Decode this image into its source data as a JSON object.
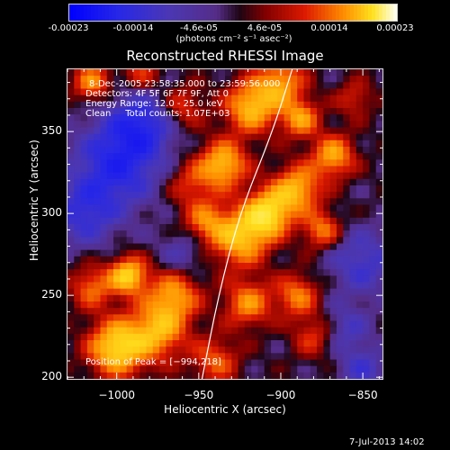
{
  "colorbar": {
    "ticks": [
      "-0.00023",
      "-0.00014",
      "-4.6e-05",
      "4.6e-05",
      "0.00014",
      "0.00023"
    ],
    "units": "(photons cm⁻² s⁻¹ asec⁻²)",
    "range": [
      -0.00023,
      0.00023
    ]
  },
  "chart_data": {
    "type": "heatmap",
    "title": "Reconstructed RHESSI Image",
    "xlabel": "Heliocentric X (arcsec)",
    "ylabel": "Heliocentric Y (arcsec)",
    "xlim": [
      -1030,
      -838
    ],
    "ylim": [
      199,
      388
    ],
    "xticks": [
      -1000,
      -950,
      -900,
      -850
    ],
    "yticks": [
      200,
      250,
      300,
      350
    ],
    "xtick_labels": [
      "−1000",
      "−950",
      "−900",
      "−850"
    ],
    "ytick_labels": [
      "200",
      "250",
      "300",
      "350"
    ],
    "info_lines": [
      "8-Dec-2005 23:58:35.000 to 23:59:56.000",
      "Detectors: 4F 5F 6F 7F 9F, Att 0",
      "Energy Range: 12.0 - 25.0 keV",
      "Clean     Total counts: 1.07E+03"
    ],
    "peak_label": "Position of Peak = [−994,218]",
    "peak_position": [
      -994,
      218
    ],
    "colormap": "blue-purple-red-yellow-white",
    "limb_curve": [
      [
        -948,
        199
      ],
      [
        -938,
        250
      ],
      [
        -925,
        300
      ],
      [
        -905,
        350
      ],
      [
        -893,
        388
      ]
    ],
    "blobs": [
      {
        "x": -1000,
        "y": 218,
        "amp": 1.0,
        "r": 12
      },
      {
        "x": -975,
        "y": 228,
        "amp": 0.75,
        "r": 12
      },
      {
        "x": -993,
        "y": 262,
        "amp": 0.95,
        "r": 8
      },
      {
        "x": -965,
        "y": 250,
        "amp": 0.7,
        "r": 11
      },
      {
        "x": -1015,
        "y": 255,
        "amp": 0.55,
        "r": 9
      },
      {
        "x": -908,
        "y": 300,
        "amp": 1.0,
        "r": 10
      },
      {
        "x": -925,
        "y": 285,
        "amp": 0.85,
        "r": 12
      },
      {
        "x": -890,
        "y": 315,
        "amp": 0.8,
        "r": 10
      },
      {
        "x": -935,
        "y": 330,
        "amp": 0.85,
        "r": 10
      },
      {
        "x": -918,
        "y": 365,
        "amp": 0.85,
        "r": 11
      },
      {
        "x": -900,
        "y": 380,
        "amp": 0.7,
        "r": 10
      },
      {
        "x": -888,
        "y": 358,
        "amp": 0.7,
        "r": 8
      },
      {
        "x": -868,
        "y": 335,
        "amp": 0.75,
        "r": 9
      },
      {
        "x": -875,
        "y": 290,
        "amp": 0.6,
        "r": 8
      },
      {
        "x": -946,
        "y": 295,
        "amp": 0.55,
        "r": 9
      },
      {
        "x": -955,
        "y": 318,
        "amp": 0.4,
        "r": 10
      },
      {
        "x": -890,
        "y": 250,
        "amp": 0.6,
        "r": 9
      },
      {
        "x": -920,
        "y": 245,
        "amp": 0.65,
        "r": 10
      },
      {
        "x": -880,
        "y": 225,
        "amp": 0.4,
        "r": 9
      },
      {
        "x": -940,
        "y": 210,
        "amp": 0.5,
        "r": 10
      },
      {
        "x": -1015,
        "y": 380,
        "amp": 0.65,
        "r": 8
      },
      {
        "x": -985,
        "y": 385,
        "amp": 0.4,
        "r": 8
      },
      {
        "x": -960,
        "y": 365,
        "amp": 0.45,
        "r": 9
      },
      {
        "x": -855,
        "y": 370,
        "amp": 0.35,
        "r": 8
      },
      {
        "x": -860,
        "y": 230,
        "amp": -0.35,
        "r": 10
      },
      {
        "x": -1000,
        "y": 330,
        "amp": -0.7,
        "r": 18
      },
      {
        "x": -985,
        "y": 355,
        "amp": -0.6,
        "r": 14
      },
      {
        "x": -1020,
        "y": 300,
        "amp": -0.5,
        "r": 14
      },
      {
        "x": -850,
        "y": 270,
        "amp": -0.45,
        "r": 14
      },
      {
        "x": -960,
        "y": 275,
        "amp": -0.3,
        "r": 10
      },
      {
        "x": -850,
        "y": 205,
        "amp": -0.4,
        "r": 10
      }
    ]
  },
  "footer": {
    "timestamp": "7-Jul-2013 14:02"
  }
}
